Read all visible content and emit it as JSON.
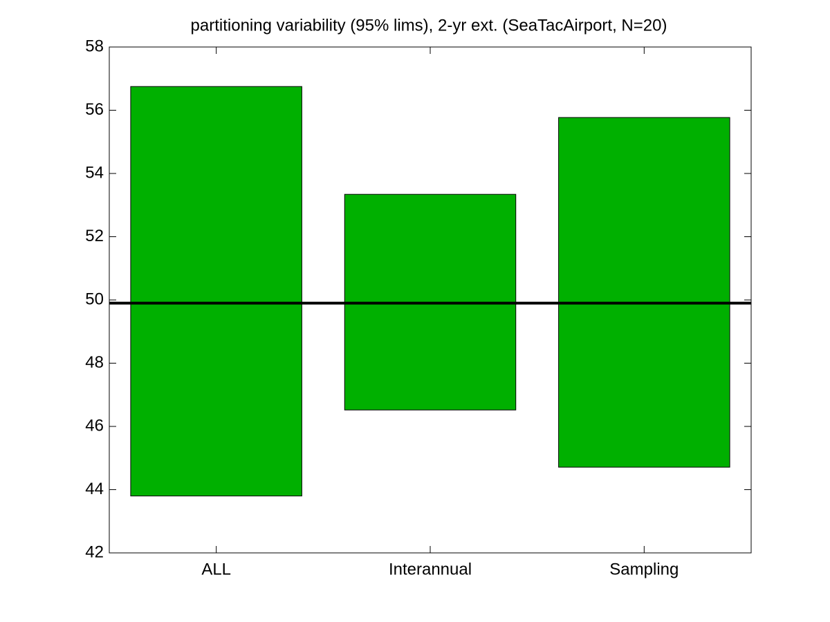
{
  "chart_data": {
    "type": "floating_bar",
    "title": "partitioning variability (95% lims), 2-yr ext. (SeaTacAirport, N=20)",
    "categories": [
      "ALL",
      "Interannual",
      "Sampling"
    ],
    "low": [
      43.8,
      46.52,
      44.71
    ],
    "high": [
      56.75,
      53.34,
      55.77
    ],
    "color": "#00b000",
    "reference_line": 49.9,
    "ylim": [
      42,
      58
    ],
    "yticks": [
      42,
      44,
      46,
      48,
      50,
      52,
      54,
      56,
      58
    ]
  }
}
